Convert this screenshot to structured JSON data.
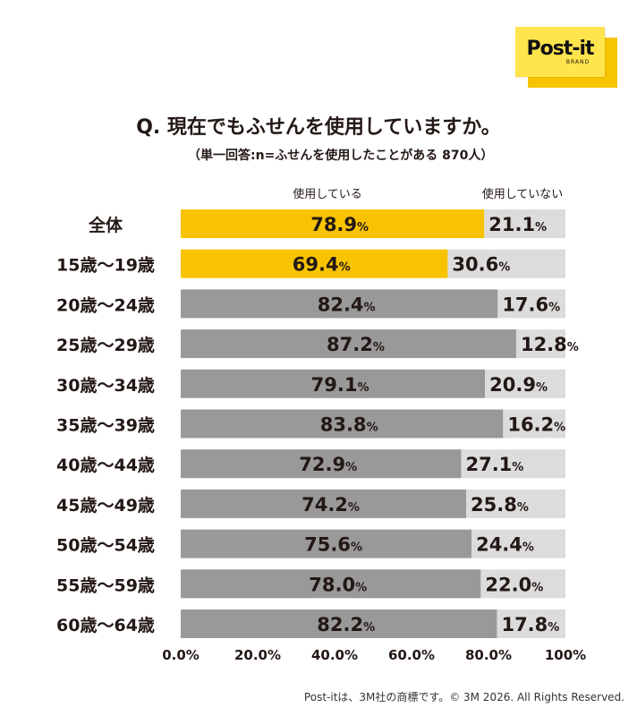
{
  "logo": {
    "text": "Post-it",
    "sub": "BRAND"
  },
  "title": "Q. 現在でもふせんを使用していますか。",
  "subtitle": "（単一回答:n=ふせんを使用したことがある 870人）",
  "footer": "Post-itは、3M社の商標です。© 3M 2026. All Rights Reserved.",
  "chart_data": {
    "type": "bar",
    "orientation": "horizontal",
    "stacked": true,
    "categories": [
      "全体",
      "15歳〜19歳",
      "20歳〜24歳",
      "25歳〜29歳",
      "30歳〜34歳",
      "35歳〜39歳",
      "40歳〜44歳",
      "45歳〜49歳",
      "50歳〜54歳",
      "55歳〜59歳",
      "60歳〜64歳"
    ],
    "series": [
      {
        "name": "使用している",
        "values": [
          78.9,
          69.4,
          82.4,
          87.2,
          79.1,
          83.8,
          72.9,
          74.2,
          75.6,
          78.0,
          82.2
        ]
      },
      {
        "name": "使用していない",
        "values": [
          21.1,
          30.6,
          17.6,
          12.8,
          20.9,
          16.2,
          27.1,
          25.8,
          24.4,
          22.0,
          17.8
        ]
      }
    ],
    "value_labels": {
      "使用している": [
        "78.9",
        "69.4",
        "82.4",
        "87.2",
        "79.1",
        "83.8",
        "72.9",
        "74.2",
        "75.6",
        "78.0",
        "82.2"
      ],
      "使用していない": [
        "21.1",
        "30.6",
        "17.6",
        "12.8",
        "20.9",
        "16.2",
        "27.1",
        "25.8",
        "24.4",
        "22.0",
        "17.8"
      ]
    },
    "value_suffix": "%",
    "xticks": [
      "0.0%",
      "20.0%",
      "40.0%",
      "60.0%",
      "80.0%",
      "100%"
    ],
    "xlim": [
      0,
      100
    ],
    "highlighted_rows": [
      0,
      1
    ],
    "colors": {
      "highlight": "#f8c300",
      "used": "#999999",
      "not_used": "#dcdcdc"
    },
    "legend": "top"
  }
}
